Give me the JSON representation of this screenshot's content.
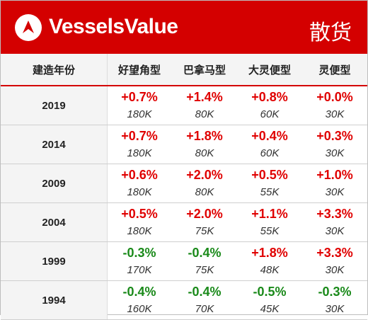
{
  "header": {
    "brand": "VesselsValue",
    "category": "散货",
    "logo_icon": "vesselsvalue-logo-icon",
    "bg_color": "#d40000"
  },
  "table": {
    "year_header": "建造年份",
    "columns": [
      "好望角型",
      "巴拿马型",
      "大灵便型",
      "灵便型"
    ],
    "rows": [
      {
        "year": "2019",
        "cells": [
          {
            "change": "+0.7%",
            "size": "180K",
            "dir": "pos"
          },
          {
            "change": "+1.4%",
            "size": "80K",
            "dir": "pos"
          },
          {
            "change": "+0.8%",
            "size": "60K",
            "dir": "pos"
          },
          {
            "change": "+0.0%",
            "size": "30K",
            "dir": "pos"
          }
        ]
      },
      {
        "year": "2014",
        "cells": [
          {
            "change": "+0.7%",
            "size": "180K",
            "dir": "pos"
          },
          {
            "change": "+1.8%",
            "size": "80K",
            "dir": "pos"
          },
          {
            "change": "+0.4%",
            "size": "60K",
            "dir": "pos"
          },
          {
            "change": "+0.3%",
            "size": "30K",
            "dir": "pos"
          }
        ]
      },
      {
        "year": "2009",
        "cells": [
          {
            "change": "+0.6%",
            "size": "180K",
            "dir": "pos"
          },
          {
            "change": "+2.0%",
            "size": "80K",
            "dir": "pos"
          },
          {
            "change": "+0.5%",
            "size": "55K",
            "dir": "pos"
          },
          {
            "change": "+1.0%",
            "size": "30K",
            "dir": "pos"
          }
        ]
      },
      {
        "year": "2004",
        "cells": [
          {
            "change": "+0.5%",
            "size": "180K",
            "dir": "pos"
          },
          {
            "change": "+2.0%",
            "size": "75K",
            "dir": "pos"
          },
          {
            "change": "+1.1%",
            "size": "55K",
            "dir": "pos"
          },
          {
            "change": "+3.3%",
            "size": "30K",
            "dir": "pos"
          }
        ]
      },
      {
        "year": "1999",
        "cells": [
          {
            "change": "-0.3%",
            "size": "170K",
            "dir": "neg"
          },
          {
            "change": "-0.4%",
            "size": "75K",
            "dir": "neg"
          },
          {
            "change": "+1.8%",
            "size": "48K",
            "dir": "pos"
          },
          {
            "change": "+3.3%",
            "size": "30K",
            "dir": "pos"
          }
        ]
      },
      {
        "year": "1994",
        "cells": [
          {
            "change": "-0.4%",
            "size": "160K",
            "dir": "neg"
          },
          {
            "change": "-0.4%",
            "size": "70K",
            "dir": "neg"
          },
          {
            "change": "-0.5%",
            "size": "45K",
            "dir": "neg"
          },
          {
            "change": "-0.3%",
            "size": "30K",
            "dir": "neg"
          }
        ]
      }
    ]
  },
  "colors": {
    "positive": "#e00000",
    "negative": "#1a8a1a",
    "accent": "#d40000"
  }
}
